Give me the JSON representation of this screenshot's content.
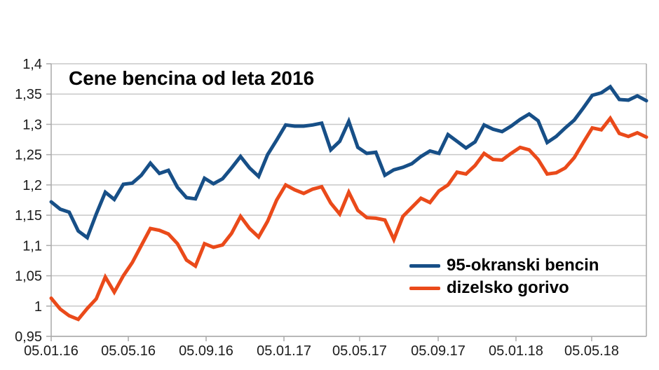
{
  "title": "Cene bencina od leta 2016",
  "colors": {
    "petrol_line": "#174f87",
    "diesel_line": "#ea4a1a",
    "gridline": "#c8c8c8",
    "axis": "#a9a9a9",
    "tick_text": "#1c1c1c",
    "title_text": "#000000",
    "background": "#ffffff"
  },
  "chart_data": {
    "type": "line",
    "title": "Cene bencina od leta 2016",
    "xlabel": "",
    "ylabel": "",
    "ylim": [
      0.95,
      1.4
    ],
    "grid": true,
    "legend_position": "inside-right",
    "decimal_separator": ",",
    "y_ticks": [
      {
        "value": 1.4,
        "label": "1,4"
      },
      {
        "value": 1.35,
        "label": "1,35"
      },
      {
        "value": 1.3,
        "label": "1,3"
      },
      {
        "value": 1.25,
        "label": "1,25"
      },
      {
        "value": 1.2,
        "label": "1,2"
      },
      {
        "value": 1.15,
        "label": "1,15"
      },
      {
        "value": 1.1,
        "label": "1,1"
      },
      {
        "value": 1.05,
        "label": "1,05"
      },
      {
        "value": 1.0,
        "label": "1"
      },
      {
        "value": 0.95,
        "label": "0,95"
      }
    ],
    "x_ticks": [
      {
        "pos": 0.0,
        "label": "05.01.16"
      },
      {
        "pos": 0.1296,
        "label": "05.05.16"
      },
      {
        "pos": 0.2603,
        "label": "05.09.16"
      },
      {
        "pos": 0.3911,
        "label": "05.01.17"
      },
      {
        "pos": 0.5182,
        "label": "05.05.17"
      },
      {
        "pos": 0.6502,
        "label": "05.09.17"
      },
      {
        "pos": 0.7809,
        "label": "05.01.18"
      },
      {
        "pos": 0.9081,
        "label": "05.05.18"
      }
    ],
    "series": [
      {
        "name": "95-okranski bencin",
        "color": "#174f87",
        "values": [
          1.172,
          1.16,
          1.155,
          1.124,
          1.113,
          1.152,
          1.188,
          1.176,
          1.201,
          1.203,
          1.216,
          1.236,
          1.219,
          1.224,
          1.196,
          1.179,
          1.177,
          1.211,
          1.202,
          1.21,
          1.228,
          1.247,
          1.228,
          1.214,
          1.25,
          1.274,
          1.299,
          1.297,
          1.297,
          1.299,
          1.302,
          1.258,
          1.272,
          1.305,
          1.262,
          1.252,
          1.254,
          1.216,
          1.225,
          1.229,
          1.235,
          1.247,
          1.256,
          1.252,
          1.283,
          1.272,
          1.261,
          1.271,
          1.299,
          1.292,
          1.288,
          1.297,
          1.308,
          1.317,
          1.306,
          1.27,
          1.28,
          1.294,
          1.307,
          1.327,
          1.348,
          1.352,
          1.362,
          1.341,
          1.34,
          1.347,
          1.339
        ]
      },
      {
        "name": "dizelsko gorivo",
        "color": "#ea4a1a",
        "values": [
          1.013,
          0.995,
          0.984,
          0.978,
          0.996,
          1.012,
          1.048,
          1.023,
          1.05,
          1.072,
          1.1,
          1.128,
          1.125,
          1.119,
          1.103,
          1.076,
          1.066,
          1.103,
          1.097,
          1.101,
          1.12,
          1.148,
          1.128,
          1.114,
          1.14,
          1.175,
          1.2,
          1.192,
          1.186,
          1.193,
          1.197,
          1.17,
          1.152,
          1.188,
          1.158,
          1.146,
          1.145,
          1.142,
          1.11,
          1.148,
          1.163,
          1.178,
          1.171,
          1.19,
          1.2,
          1.221,
          1.218,
          1.232,
          1.252,
          1.242,
          1.241,
          1.252,
          1.262,
          1.258,
          1.242,
          1.218,
          1.22,
          1.228,
          1.245,
          1.27,
          1.294,
          1.291,
          1.31,
          1.285,
          1.28,
          1.286,
          1.279
        ]
      }
    ]
  },
  "legend": {
    "items": [
      {
        "label": "95-okranski bencin"
      },
      {
        "label": "dizelsko gorivo"
      }
    ]
  }
}
